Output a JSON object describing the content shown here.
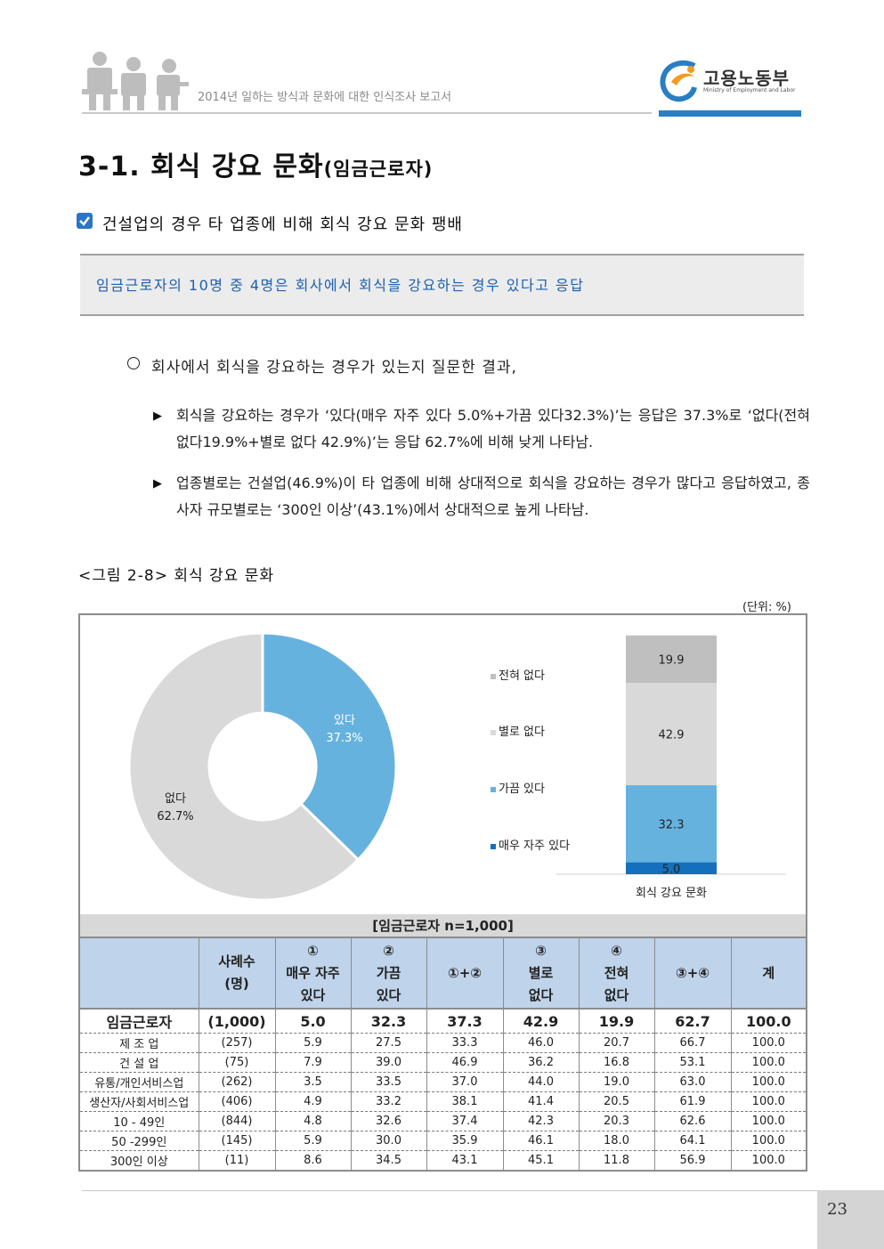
{
  "header": {
    "report_title": "2014년 일하는 방식과 문화에 대한 인식조사 보고서",
    "logo_name": "고용노동부",
    "logo_subtitle": "Ministry of Employment and Labor"
  },
  "section": {
    "number": "3-1.",
    "title": "회식 강요 문화",
    "title_suffix": "(임금근로자)"
  },
  "headline": "건설업의 경우 타 업종에 비해 회식 강요 문화 팽배",
  "summary": "임금근로자의 10명 중 4명은 회사에서 회식을 강요하는 경우 있다고 응답",
  "body": {
    "intro": "회사에서 회식을 강요하는 경우가 있는지 질문한 결과,",
    "bullet_symbol": "▶",
    "bullets": [
      "회식을 강요하는 경우가 ‘있다(매우 자주 있다 5.0%+가끔 있다32.3%)’는 응답은 37.3%로 ‘없다(전혀 없다19.9%+별로 없다 42.9%)’는 응답 62.7%에 비해 낮게 나타남.",
      "업종별로는 건설업(46.9%)이 타 업종에 비해 상대적으로 회식을 강요하는 경우가 많다고 응답하였고, 종사자 규모별로는 ‘300인 이상’(43.1%)에서 상대적으로 높게 나타남."
    ]
  },
  "figure": {
    "caption": "<그림 2-8> 회식 강요 문화",
    "unit": "(단위: %)"
  },
  "colors": {
    "very_often": "#1470bd",
    "sometimes": "#66b2de",
    "rarely": "#d9d9d9",
    "never": "#bfbfbf",
    "accent_blue": "#1d5fb0",
    "table_header": "#bfd3ea"
  },
  "chart_data": [
    {
      "type": "pie",
      "donut": true,
      "labels": [
        "있다",
        "없다"
      ],
      "values": [
        37.3,
        62.7
      ],
      "value_labels": [
        "37.3%",
        "62.7%"
      ],
      "colors": [
        "#66b2de",
        "#d9d9d9"
      ]
    },
    {
      "type": "bar",
      "stacked": true,
      "categories": [
        "회식 강요 문화"
      ],
      "series": [
        {
          "name": "매우 자주 있다",
          "values": [
            5.0
          ],
          "label": "5.0",
          "color": "#1470bd"
        },
        {
          "name": "가끔 있다",
          "values": [
            32.3
          ],
          "label": "32.3",
          "color": "#66b2de"
        },
        {
          "name": "별로 없다",
          "values": [
            42.9
          ],
          "label": "42.9",
          "color": "#d9d9d9"
        },
        {
          "name": "전혀 없다",
          "values": [
            19.9
          ],
          "label": "19.9",
          "color": "#bfbfbf"
        }
      ],
      "legend": [
        "전혀 없다",
        "별로 없다",
        "가끔 있다",
        "매우 자주 있다"
      ],
      "legend_position": "left",
      "ylim": [
        0,
        100
      ]
    }
  ],
  "table": {
    "caption": "[임금근로자 n=1,000]",
    "headers": [
      "",
      "사례수\n(명)",
      "①\n매우 자주\n있다",
      "②\n가끔\n있다",
      "①+②",
      "③\n별로\n없다",
      "④\n전혀\n없다",
      "③+④",
      "계"
    ],
    "total": [
      "임금근로자",
      "(1,000)",
      "5.0",
      "32.3",
      "37.3",
      "42.9",
      "19.9",
      "62.7",
      "100.0"
    ],
    "rows": [
      [
        "제 조 업",
        "(257)",
        "5.9",
        "27.5",
        "33.3",
        "46.0",
        "20.7",
        "66.7",
        "100.0"
      ],
      [
        "건 설 업",
        "(75)",
        "7.9",
        "39.0",
        "46.9",
        "36.2",
        "16.8",
        "53.1",
        "100.0"
      ],
      [
        "유통/개인서비스업",
        "(262)",
        "3.5",
        "33.5",
        "37.0",
        "44.0",
        "19.0",
        "63.0",
        "100.0"
      ],
      [
        "생산자/사회서비스업",
        "(406)",
        "4.9",
        "33.2",
        "38.1",
        "41.4",
        "20.5",
        "61.9",
        "100.0"
      ],
      [
        "10 - 49인",
        "(844)",
        "4.8",
        "32.6",
        "37.4",
        "42.3",
        "20.3",
        "62.6",
        "100.0"
      ],
      [
        "50 -299인",
        "(145)",
        "5.9",
        "30.0",
        "35.9",
        "46.1",
        "18.0",
        "64.1",
        "100.0"
      ],
      [
        "300인 이상",
        "(11)",
        "8.6",
        "34.5",
        "43.1",
        "45.1",
        "11.8",
        "56.9",
        "100.0"
      ]
    ]
  },
  "page_number": "23"
}
